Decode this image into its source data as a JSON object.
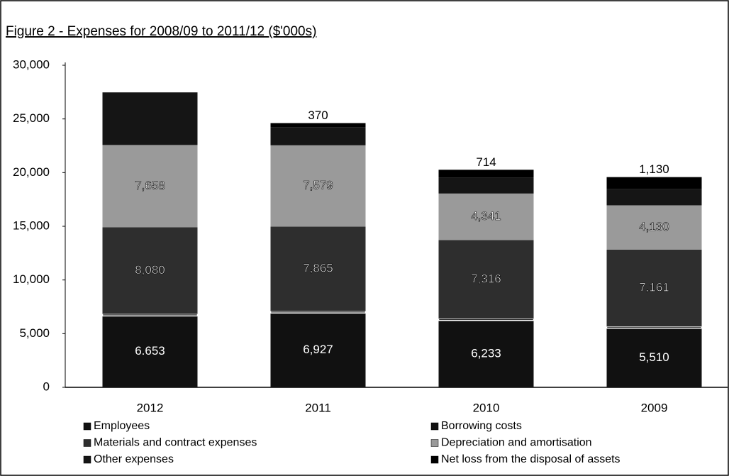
{
  "chart_data": {
    "type": "stacked_bar",
    "title": "Figure 2 - Expenses for 2008/09 to 2011/12 ($'000s)",
    "categories": [
      "2012",
      "2011",
      "2010",
      "2009"
    ],
    "series": [
      {
        "name": "Employees",
        "color": "#111111",
        "values": [
          6653,
          6927,
          6233,
          5510
        ],
        "value_labels": [
          "6.653",
          "6,927",
          "6,233",
          "5,510"
        ]
      },
      {
        "name": "Borrowing costs",
        "color": "#111111",
        "values": [
          183,
          173,
          162,
          152
        ]
      },
      {
        "name": "Materials and contract expenses",
        "color": "#2e2e2e",
        "values": [
          8080,
          7865,
          7316,
          7161
        ],
        "value_labels": [
          "8,080",
          "7,865",
          "7,316",
          "7,161"
        ]
      },
      {
        "name": "Depreciation and amortisation",
        "color": "#9a9a9a",
        "values": [
          7658,
          7579,
          4341,
          4130
        ],
        "value_labels": [
          "7,658",
          "7,579",
          "4,341",
          "4,130"
        ]
      },
      {
        "name": "Other expenses",
        "color": "#151515",
        "values": [
          4900,
          1700,
          1500,
          1500
        ]
      },
      {
        "name": "Net loss  from the disposal of assets",
        "color": "#000000",
        "values": [
          null,
          370,
          714,
          1130
        ],
        "value_labels": [
          null,
          "370",
          "714",
          "1,130"
        ]
      }
    ],
    "ylim": [
      0,
      30000
    ],
    "yticks": [
      0,
      {
        "value": 5000,
        "label": "5,000"
      },
      {
        "value": 10000,
        "label": "10,000"
      },
      {
        "value": 15000,
        "label": "15,000"
      },
      {
        "value": 20000,
        "label": "20,000"
      },
      {
        "value": 25000,
        "label": "25,000"
      },
      {
        "value": 30000,
        "label": "30,000"
      }
    ],
    "grid": false
  }
}
